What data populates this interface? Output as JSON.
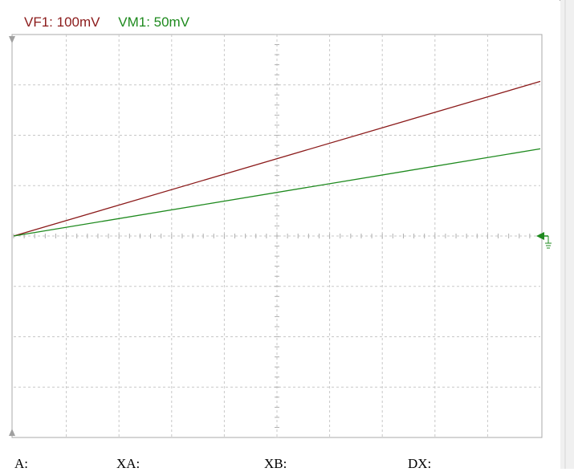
{
  "channels": [
    {
      "label": "VF1: 100mV",
      "color": "#8b1a1a"
    },
    {
      "label": "VM1: 50mV",
      "color": "#1e8a1e"
    }
  ],
  "readouts": {
    "a": "A:",
    "xa": "XA:",
    "xb": "XB:",
    "dx": "DX:"
  },
  "chart_data": {
    "type": "line",
    "grid": true,
    "x_divisions": 10,
    "y_divisions": 8,
    "xlim": [
      0,
      10
    ],
    "ylim": [
      -4,
      4
    ],
    "series": [
      {
        "name": "VF1",
        "color": "#8b1a1a",
        "x": [
          0,
          10
        ],
        "values": [
          0.0,
          3.07
        ]
      },
      {
        "name": "VM1",
        "color": "#1e8a1e",
        "x": [
          0,
          10
        ],
        "values": [
          0.0,
          1.73
        ]
      }
    ]
  }
}
